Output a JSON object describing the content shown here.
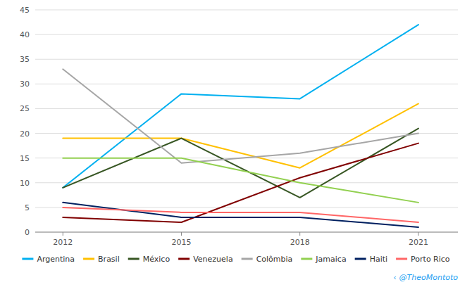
{
  "chart_data": {
    "type": "line",
    "x": [
      2012,
      2015,
      2018,
      2021
    ],
    "series": [
      {
        "name": "Argentina",
        "color": "#00B0F0",
        "values": [
          9,
          28,
          27,
          42
        ]
      },
      {
        "name": "Brasil",
        "color": "#FFC000",
        "values": [
          19,
          19,
          13,
          26
        ]
      },
      {
        "name": "México",
        "color": "#375623",
        "values": [
          9,
          19,
          7,
          21
        ]
      },
      {
        "name": "Venezuela",
        "color": "#800000",
        "values": [
          3,
          2,
          11,
          18
        ]
      },
      {
        "name": "Colômbia",
        "color": "#A6A6A6",
        "values": [
          33,
          14,
          16,
          20
        ]
      },
      {
        "name": "Jamaica",
        "color": "#92D050",
        "values": [
          15,
          15,
          10,
          6
        ]
      },
      {
        "name": "Haiti",
        "color": "#002060",
        "values": [
          6,
          3,
          3,
          1
        ]
      },
      {
        "name": "Porto Rico",
        "color": "#FF6666",
        "values": [
          5,
          4,
          4,
          2
        ]
      }
    ],
    "xlim": [
      2011.3,
      2022.0
    ],
    "xticks": [
      2012,
      2015,
      2018,
      2021
    ],
    "ylim": [
      0,
      45
    ],
    "yticks": [
      0,
      5,
      10,
      15,
      20,
      25,
      30,
      35,
      40,
      45
    ],
    "grid": true,
    "legend": "bottom",
    "annotations": [
      {
        "text": "‹",
        "color": "#1DA1F2"
      },
      {
        "text": "@TheoMontoto",
        "color": "#1DA1F2"
      }
    ]
  }
}
